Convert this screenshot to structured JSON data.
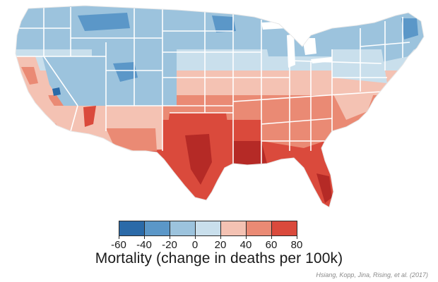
{
  "map": {
    "subject": "Contiguous United States county mortality map"
  },
  "legend": {
    "title": "Mortality (change in deaths per 100k)",
    "ticks": [
      "-60",
      "-40",
      "-20",
      "0",
      "20",
      "40",
      "60",
      "80"
    ],
    "colors": [
      "#2b6aa8",
      "#5b97c8",
      "#9cc3dd",
      "#c9dfec",
      "#f4c2b3",
      "#ea8a74",
      "#da4a3c",
      "#b52a26"
    ]
  },
  "citation": "Hsiang, Kopp, Jina, Rising, et al. (2017)",
  "palette": {
    "blue_dark": "#2b6aa8",
    "blue_mid": "#5b97c8",
    "blue_light": "#9cc3dd",
    "blue_pale": "#c9dfec",
    "red_pale": "#f4c2b3",
    "red_light": "#ea8a74",
    "red_mid": "#da4a3c",
    "red_dark": "#b52a26",
    "border": "#ffffff"
  }
}
